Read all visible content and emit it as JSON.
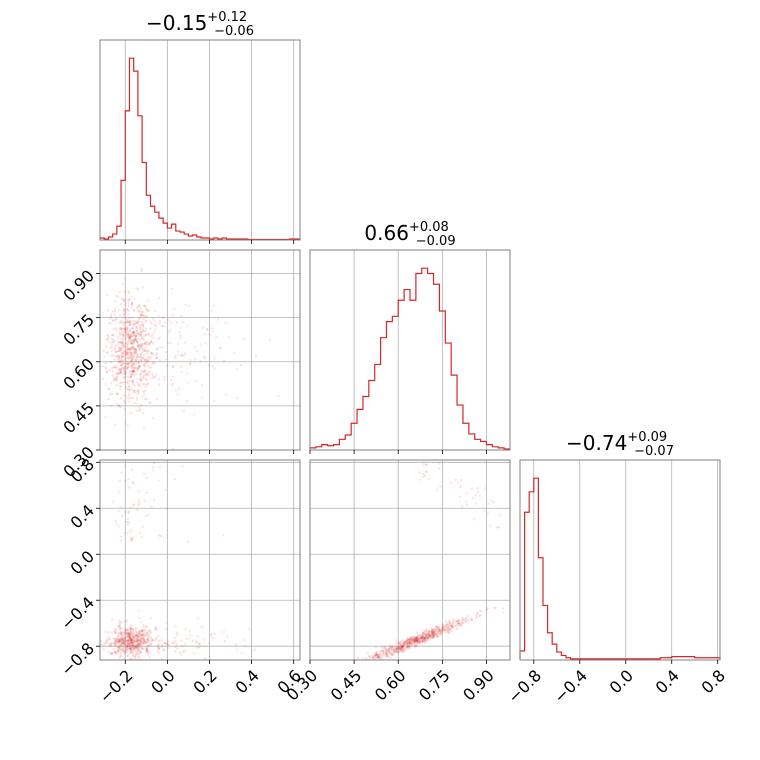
{
  "chart_data": {
    "type": "corner",
    "color": "#d62728",
    "params": [
      {
        "median": "−0.15",
        "upper": "+0.12",
        "lower": "−0.06",
        "range": [
          -0.32,
          0.63
        ],
        "ticks": [
          -0.2,
          0.0,
          0.2,
          0.4,
          0.6
        ],
        "tick_labels": [
          "−0.2",
          "0.0",
          "0.2",
          "0.4",
          "0.6"
        ],
        "hist_bins": [
          -0.32,
          -0.3,
          -0.28,
          -0.26,
          -0.24,
          -0.22,
          -0.2,
          -0.18,
          -0.16,
          -0.14,
          -0.12,
          -0.1,
          -0.08,
          -0.06,
          -0.04,
          -0.02,
          0.0,
          0.02,
          0.04,
          0.06,
          0.08,
          0.1,
          0.12,
          0.14,
          0.16,
          0.18,
          0.2,
          0.22,
          0.24,
          0.26,
          0.28,
          0.3,
          0.34,
          0.38,
          0.42,
          0.46,
          0.5,
          0.54,
          0.58,
          0.63
        ],
        "hist_counts": [
          2,
          1,
          3,
          6,
          14,
          60,
          130,
          183,
          170,
          125,
          78,
          45,
          34,
          28,
          22,
          17,
          12,
          16,
          9,
          8,
          6,
          4,
          5,
          3,
          2,
          2,
          1,
          2,
          1,
          2,
          1,
          1,
          1,
          0.5,
          0.5,
          0.5,
          0.5,
          0.5,
          1
        ]
      },
      {
        "median": "0.66",
        "upper": "+0.08",
        "lower": "−0.09",
        "range": [
          0.3,
          0.98
        ],
        "ticks": [
          0.3,
          0.45,
          0.6,
          0.75,
          0.9
        ],
        "tick_labels": [
          "0.30",
          "0.45",
          "0.60",
          "0.75",
          "0.90"
        ],
        "hist_bins": [
          0.3,
          0.32,
          0.34,
          0.36,
          0.38,
          0.4,
          0.42,
          0.44,
          0.46,
          0.48,
          0.5,
          0.52,
          0.54,
          0.56,
          0.58,
          0.6,
          0.62,
          0.64,
          0.66,
          0.68,
          0.7,
          0.72,
          0.74,
          0.76,
          0.78,
          0.8,
          0.82,
          0.84,
          0.86,
          0.88,
          0.9,
          0.92,
          0.94,
          0.96,
          0.98
        ],
        "hist_counts": [
          2,
          3,
          5,
          4,
          5,
          10,
          14,
          25,
          38,
          50,
          65,
          80,
          105,
          120,
          125,
          140,
          150,
          140,
          165,
          170,
          165,
          155,
          130,
          100,
          70,
          42,
          25,
          15,
          10,
          8,
          5,
          3,
          2,
          1
        ]
      },
      {
        "median": "−0.74",
        "upper": "+0.09",
        "lower": "−0.07",
        "range": [
          -0.92,
          0.82
        ],
        "ticks": [
          -0.8,
          -0.4,
          0.0,
          0.4,
          0.8
        ],
        "tick_labels": [
          "−0.8",
          "−0.4",
          "0.0",
          "0.4",
          "0.8"
        ],
        "hist_bins": [
          -0.92,
          -0.88,
          -0.84,
          -0.8,
          -0.76,
          -0.72,
          -0.68,
          -0.64,
          -0.6,
          -0.56,
          -0.52,
          -0.48,
          -0.44,
          -0.4,
          -0.36,
          -0.32,
          -0.28,
          -0.24,
          -0.2,
          -0.1,
          0.0,
          0.1,
          0.2,
          0.3,
          0.4,
          0.5,
          0.6,
          0.7,
          0.82
        ],
        "hist_counts": [
          8,
          130,
          148,
          160,
          90,
          48,
          24,
          14,
          7,
          4,
          2,
          1,
          1,
          1,
          1,
          1,
          1,
          1,
          1,
          1,
          1,
          1,
          1,
          2,
          3,
          3,
          2,
          2
        ]
      }
    ],
    "grid": true,
    "contour_levels": 4
  }
}
